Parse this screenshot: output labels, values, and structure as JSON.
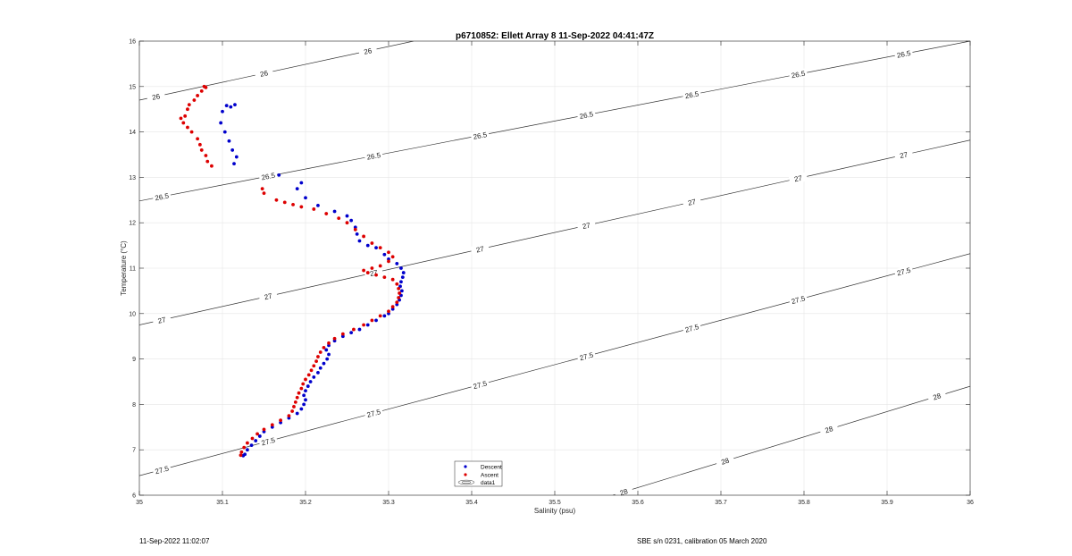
{
  "chart_data": {
    "type": "scatter",
    "title": "p6710852: Ellett Array 8 11-Sep-2022 04:41:47Z",
    "xlabel": "Salinity (psu)",
    "ylabel": "Temperature (°C)",
    "xlim": [
      35,
      36
    ],
    "ylim": [
      6,
      16
    ],
    "xticks": [
      35,
      35.1,
      35.2,
      35.3,
      35.4,
      35.5,
      35.6,
      35.7,
      35.8,
      35.9,
      36
    ],
    "yticks": [
      6,
      7,
      8,
      9,
      10,
      11,
      12,
      13,
      14,
      15,
      16
    ],
    "xtick_labels": [
      "35",
      "35.1",
      "35.2",
      "35.3",
      "35.4",
      "35.5",
      "35.6",
      "35.7",
      "35.8",
      "35.9",
      "36"
    ],
    "ytick_labels": [
      "6",
      "7",
      "8",
      "9",
      "10",
      "11",
      "12",
      "13",
      "14",
      "15",
      "16"
    ],
    "grid": true,
    "legend": {
      "placement": "bottom-center",
      "entries": [
        "Descent",
        "Ascent",
        "data1"
      ]
    },
    "colors": {
      "descent": "#0000cc",
      "ascent": "#dd0000",
      "contour": "#333333",
      "grid": "#e6e6e6"
    },
    "series": [
      {
        "name": "Descent",
        "points": [
          [
            35.105,
            14.58
          ],
          [
            35.11,
            14.55
          ],
          [
            35.115,
            14.6
          ],
          [
            35.1,
            14.45
          ],
          [
            35.098,
            14.2
          ],
          [
            35.103,
            14.0
          ],
          [
            35.108,
            13.8
          ],
          [
            35.112,
            13.6
          ],
          [
            35.117,
            13.45
          ],
          [
            35.114,
            13.3
          ],
          [
            35.168,
            13.05
          ],
          [
            35.195,
            12.88
          ],
          [
            35.19,
            12.75
          ],
          [
            35.2,
            12.55
          ],
          [
            35.215,
            12.38
          ],
          [
            35.235,
            12.25
          ],
          [
            35.25,
            12.15
          ],
          [
            35.255,
            12.05
          ],
          [
            35.26,
            11.9
          ],
          [
            35.262,
            11.75
          ],
          [
            35.265,
            11.6
          ],
          [
            35.275,
            11.5
          ],
          [
            35.285,
            11.45
          ],
          [
            35.295,
            11.3
          ],
          [
            35.3,
            11.2
          ],
          [
            35.31,
            11.1
          ],
          [
            35.315,
            11.0
          ],
          [
            35.318,
            10.9
          ],
          [
            35.317,
            10.8
          ],
          [
            35.315,
            10.7
          ],
          [
            35.314,
            10.6
          ],
          [
            35.316,
            10.5
          ],
          [
            35.315,
            10.4
          ],
          [
            35.313,
            10.3
          ],
          [
            35.31,
            10.2
          ],
          [
            35.305,
            10.1
          ],
          [
            35.3,
            10.0
          ],
          [
            35.295,
            9.95
          ],
          [
            35.285,
            9.85
          ],
          [
            35.275,
            9.75
          ],
          [
            35.265,
            9.65
          ],
          [
            35.255,
            9.58
          ],
          [
            35.245,
            9.5
          ],
          [
            35.235,
            9.4
          ],
          [
            35.228,
            9.3
          ],
          [
            35.225,
            9.2
          ],
          [
            35.228,
            9.1
          ],
          [
            35.226,
            9.0
          ],
          [
            35.222,
            8.9
          ],
          [
            35.218,
            8.8
          ],
          [
            35.215,
            8.7
          ],
          [
            35.21,
            8.6
          ],
          [
            35.206,
            8.5
          ],
          [
            35.203,
            8.4
          ],
          [
            35.2,
            8.3
          ],
          [
            35.198,
            8.2
          ],
          [
            35.2,
            8.1
          ],
          [
            35.198,
            8.0
          ],
          [
            35.195,
            7.9
          ],
          [
            35.19,
            7.8
          ],
          [
            35.18,
            7.7
          ],
          [
            35.17,
            7.6
          ],
          [
            35.16,
            7.5
          ],
          [
            35.15,
            7.4
          ],
          [
            35.145,
            7.3
          ],
          [
            35.14,
            7.2
          ],
          [
            35.135,
            7.1
          ],
          [
            35.13,
            7.0
          ],
          [
            35.127,
            6.9
          ],
          [
            35.125,
            6.87
          ]
        ]
      },
      {
        "name": "Ascent",
        "points": [
          [
            35.078,
            15.0
          ],
          [
            35.08,
            14.98
          ],
          [
            35.075,
            14.9
          ],
          [
            35.07,
            14.8
          ],
          [
            35.066,
            14.7
          ],
          [
            35.06,
            14.6
          ],
          [
            35.058,
            14.5
          ],
          [
            35.055,
            14.35
          ],
          [
            35.05,
            14.3
          ],
          [
            35.053,
            14.2
          ],
          [
            35.058,
            14.1
          ],
          [
            35.063,
            14.0
          ],
          [
            35.07,
            13.85
          ],
          [
            35.073,
            13.72
          ],
          [
            35.075,
            13.6
          ],
          [
            35.08,
            13.48
          ],
          [
            35.082,
            13.35
          ],
          [
            35.087,
            13.25
          ],
          [
            35.148,
            12.75
          ],
          [
            35.15,
            12.65
          ],
          [
            35.165,
            12.5
          ],
          [
            35.175,
            12.45
          ],
          [
            35.185,
            12.4
          ],
          [
            35.195,
            12.35
          ],
          [
            35.21,
            12.3
          ],
          [
            35.225,
            12.2
          ],
          [
            35.24,
            12.1
          ],
          [
            35.25,
            12.0
          ],
          [
            35.26,
            11.85
          ],
          [
            35.27,
            11.7
          ],
          [
            35.28,
            11.55
          ],
          [
            35.29,
            11.45
          ],
          [
            35.3,
            11.35
          ],
          [
            35.305,
            11.25
          ],
          [
            35.3,
            11.15
          ],
          [
            35.29,
            11.05
          ],
          [
            35.28,
            11.0
          ],
          [
            35.27,
            10.95
          ],
          [
            35.275,
            10.9
          ],
          [
            35.285,
            10.85
          ],
          [
            35.295,
            10.8
          ],
          [
            35.305,
            10.75
          ],
          [
            35.31,
            10.65
          ],
          [
            35.312,
            10.55
          ],
          [
            35.313,
            10.45
          ],
          [
            35.312,
            10.35
          ],
          [
            35.31,
            10.25
          ],
          [
            35.305,
            10.15
          ],
          [
            35.3,
            10.05
          ],
          [
            35.29,
            9.95
          ],
          [
            35.28,
            9.85
          ],
          [
            35.27,
            9.75
          ],
          [
            35.258,
            9.65
          ],
          [
            35.245,
            9.55
          ],
          [
            35.235,
            9.45
          ],
          [
            35.228,
            9.35
          ],
          [
            35.222,
            9.25
          ],
          [
            35.218,
            9.15
          ],
          [
            35.215,
            9.05
          ],
          [
            35.213,
            8.95
          ],
          [
            35.21,
            8.85
          ],
          [
            35.207,
            8.75
          ],
          [
            35.204,
            8.65
          ],
          [
            35.2,
            8.55
          ],
          [
            35.197,
            8.45
          ],
          [
            35.195,
            8.35
          ],
          [
            35.192,
            8.25
          ],
          [
            35.19,
            8.15
          ],
          [
            35.188,
            8.05
          ],
          [
            35.186,
            7.95
          ],
          [
            35.184,
            7.85
          ],
          [
            35.18,
            7.75
          ],
          [
            35.17,
            7.65
          ],
          [
            35.16,
            7.55
          ],
          [
            35.15,
            7.45
          ],
          [
            35.142,
            7.35
          ],
          [
            35.136,
            7.25
          ],
          [
            35.13,
            7.15
          ],
          [
            35.126,
            7.05
          ],
          [
            35.123,
            6.95
          ],
          [
            35.122,
            6.88
          ]
        ]
      }
    ],
    "contours": [
      {
        "level": "26",
        "start": [
          35.0,
          14.7
        ],
        "end": [
          35.33,
          16.0
        ],
        "labels": [
          "26",
          "26",
          "26"
        ],
        "label_x": [
          35.02,
          35.15,
          35.275
        ]
      },
      {
        "level": "26.5",
        "start": [
          35.0,
          12.48
        ],
        "end": [
          36.0,
          16.0
        ],
        "labels": [
          "26.5",
          "26.5",
          "26.5",
          "26.5",
          "26.5",
          "26.5",
          "26.5",
          "26.5"
        ],
        "label_x": [
          35.027,
          35.155,
          35.282,
          35.41,
          35.538,
          35.665,
          35.793,
          35.92
        ]
      },
      {
        "level": "27",
        "start": [
          35.0,
          9.75
        ],
        "end": [
          36.0,
          13.82
        ],
        "labels": [
          "27",
          "27",
          "27",
          "27",
          "27",
          "27",
          "27",
          "27"
        ],
        "label_x": [
          35.027,
          35.155,
          35.282,
          35.41,
          35.538,
          35.665,
          35.793,
          35.92
        ]
      },
      {
        "level": "27.5",
        "start": [
          35.0,
          6.43
        ],
        "end": [
          36.0,
          11.32
        ],
        "labels": [
          "27.5",
          "27.5",
          "27.5",
          "27.5",
          "27.5",
          "27.5",
          "27.5",
          "27.5"
        ],
        "label_x": [
          35.027,
          35.155,
          35.282,
          35.41,
          35.538,
          35.665,
          35.793,
          35.92
        ]
      },
      {
        "level": "28",
        "start": [
          35.57,
          6.0
        ],
        "end": [
          36.0,
          8.4
        ],
        "labels": [
          "28",
          "28",
          "28",
          "28"
        ],
        "label_x": [
          35.583,
          35.705,
          35.83,
          35.96
        ]
      }
    ]
  },
  "footer": {
    "left": "11-Sep-2022 11:02:07",
    "right": "SBE s/n 0231, calibration 05 March 2020"
  }
}
